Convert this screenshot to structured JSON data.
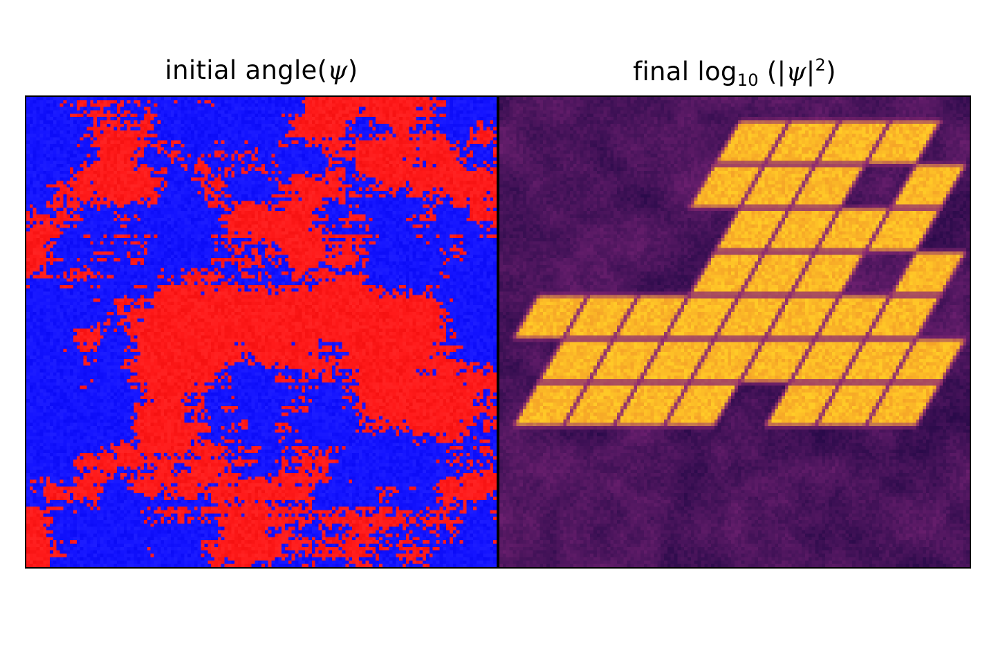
{
  "panels": [
    {
      "title": {
        "word1": "initial",
        "word2": "angle(",
        "psi": "ψ",
        "close": ")"
      },
      "colors": {
        "phase_a": "#ff1a1a",
        "phase_b": "#1414ff"
      },
      "grid_cells": 140
    },
    {
      "title": {
        "word1": "final",
        "log": "log",
        "sub": "10",
        "open": " (|",
        "psi": "ψ",
        "bar": "|",
        "sup": "2",
        "close": ")"
      },
      "colormap": "inferno",
      "colors": {
        "low": "#2a0a4a",
        "mid": "#6a1f6e",
        "high": "#fbb827",
        "line": "#8e2b72"
      },
      "grid_cells": 140
    }
  ]
}
